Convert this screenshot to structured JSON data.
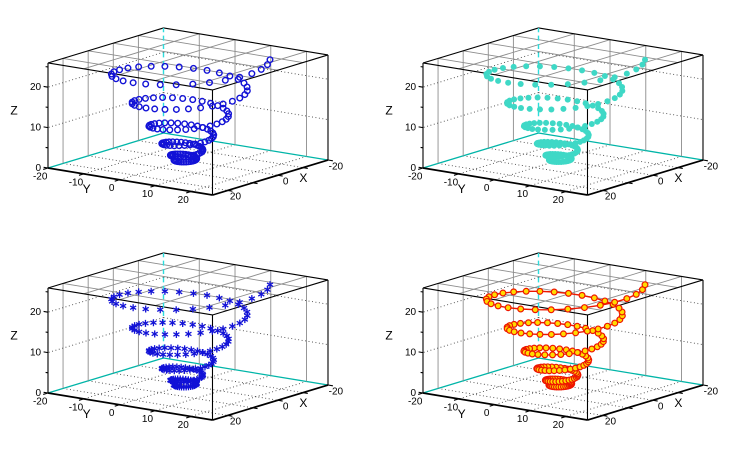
{
  "chart_data": {
    "type": "scatter",
    "projection": "3d",
    "layout": "2x2 grid of identical 3D conical-spiral scatter plots, no titles or legends",
    "series_shared": {
      "name": "conical spiral",
      "n_points": 165,
      "turns": 5.5,
      "theta_start_rad": 5.33,
      "z_exponent": 1.8,
      "z_data_max": 25,
      "r_base": 2.5,
      "r_gain": 17,
      "x_formula": "x = r(t)*cos(theta(t))",
      "y_formula": "y = r(t)*sin(theta(t))",
      "z_formula": "z = 25*t^1.8, t in [0,1]",
      "r_formula": "r = 2.5 + 17*t^1.8"
    },
    "axes": {
      "x": {
        "label": "X",
        "data_min": -20,
        "data_max": 20,
        "ticks": [
          -20,
          -10,
          0,
          10,
          20
        ],
        "labeled_ticks": [
          -20,
          0,
          20
        ]
      },
      "y": {
        "label": "Y",
        "data_min": -20,
        "data_max": 20,
        "ticks": [
          -20,
          -10,
          0,
          10,
          20
        ],
        "labeled_ticks": [
          -20,
          -10,
          0,
          10,
          20
        ]
      },
      "z": {
        "label": "Z",
        "data_min": 0,
        "data_max": 25,
        "ticks": [
          0,
          10,
          20
        ],
        "minor_ticks": [
          5,
          15,
          25
        ],
        "labeled_ticks": [
          0,
          10,
          20
        ]
      }
    },
    "grid_lines": {
      "wall_and_floor_values": [
        -10,
        0,
        10,
        20
      ],
      "z_values": [
        10,
        20
      ]
    },
    "colors": {
      "background": "#ffffff",
      "box_edge": "#000000",
      "grid_solid": "#8c8c8c",
      "grid_dotted": "#3a3a3a",
      "hidden_edge_dashed": "#2edcdc",
      "hidden_floor_edge": "#00b5a8",
      "blue": "#1212d6",
      "turquoise": "#3fd8c6",
      "yellow": "#ffdc00",
      "red": "#ee1600"
    },
    "subplots": [
      {
        "id": "top-left",
        "position": "top-left",
        "marker": "open-circle",
        "marker_color": "#1212d6",
        "marker_edge": "#1212d6",
        "marker_radius": 2.8,
        "line_color": null
      },
      {
        "id": "top-right",
        "position": "top-right",
        "marker": "filled-circle",
        "marker_color": "#3fd8c6",
        "marker_edge": null,
        "marker_radius": 3.0,
        "line_color": null
      },
      {
        "id": "bottom-left",
        "position": "bottom-left",
        "marker": "asterisk",
        "marker_color": "#1212d6",
        "marker_edge": null,
        "marker_radius": 3.5,
        "line_color": null
      },
      {
        "id": "bottom-right",
        "position": "bottom-right",
        "marker": "filled-circle",
        "marker_color": "#ffdc00",
        "marker_edge": "#ee1600",
        "marker_radius": 2.9,
        "line_color": "#ee1600"
      }
    ]
  }
}
